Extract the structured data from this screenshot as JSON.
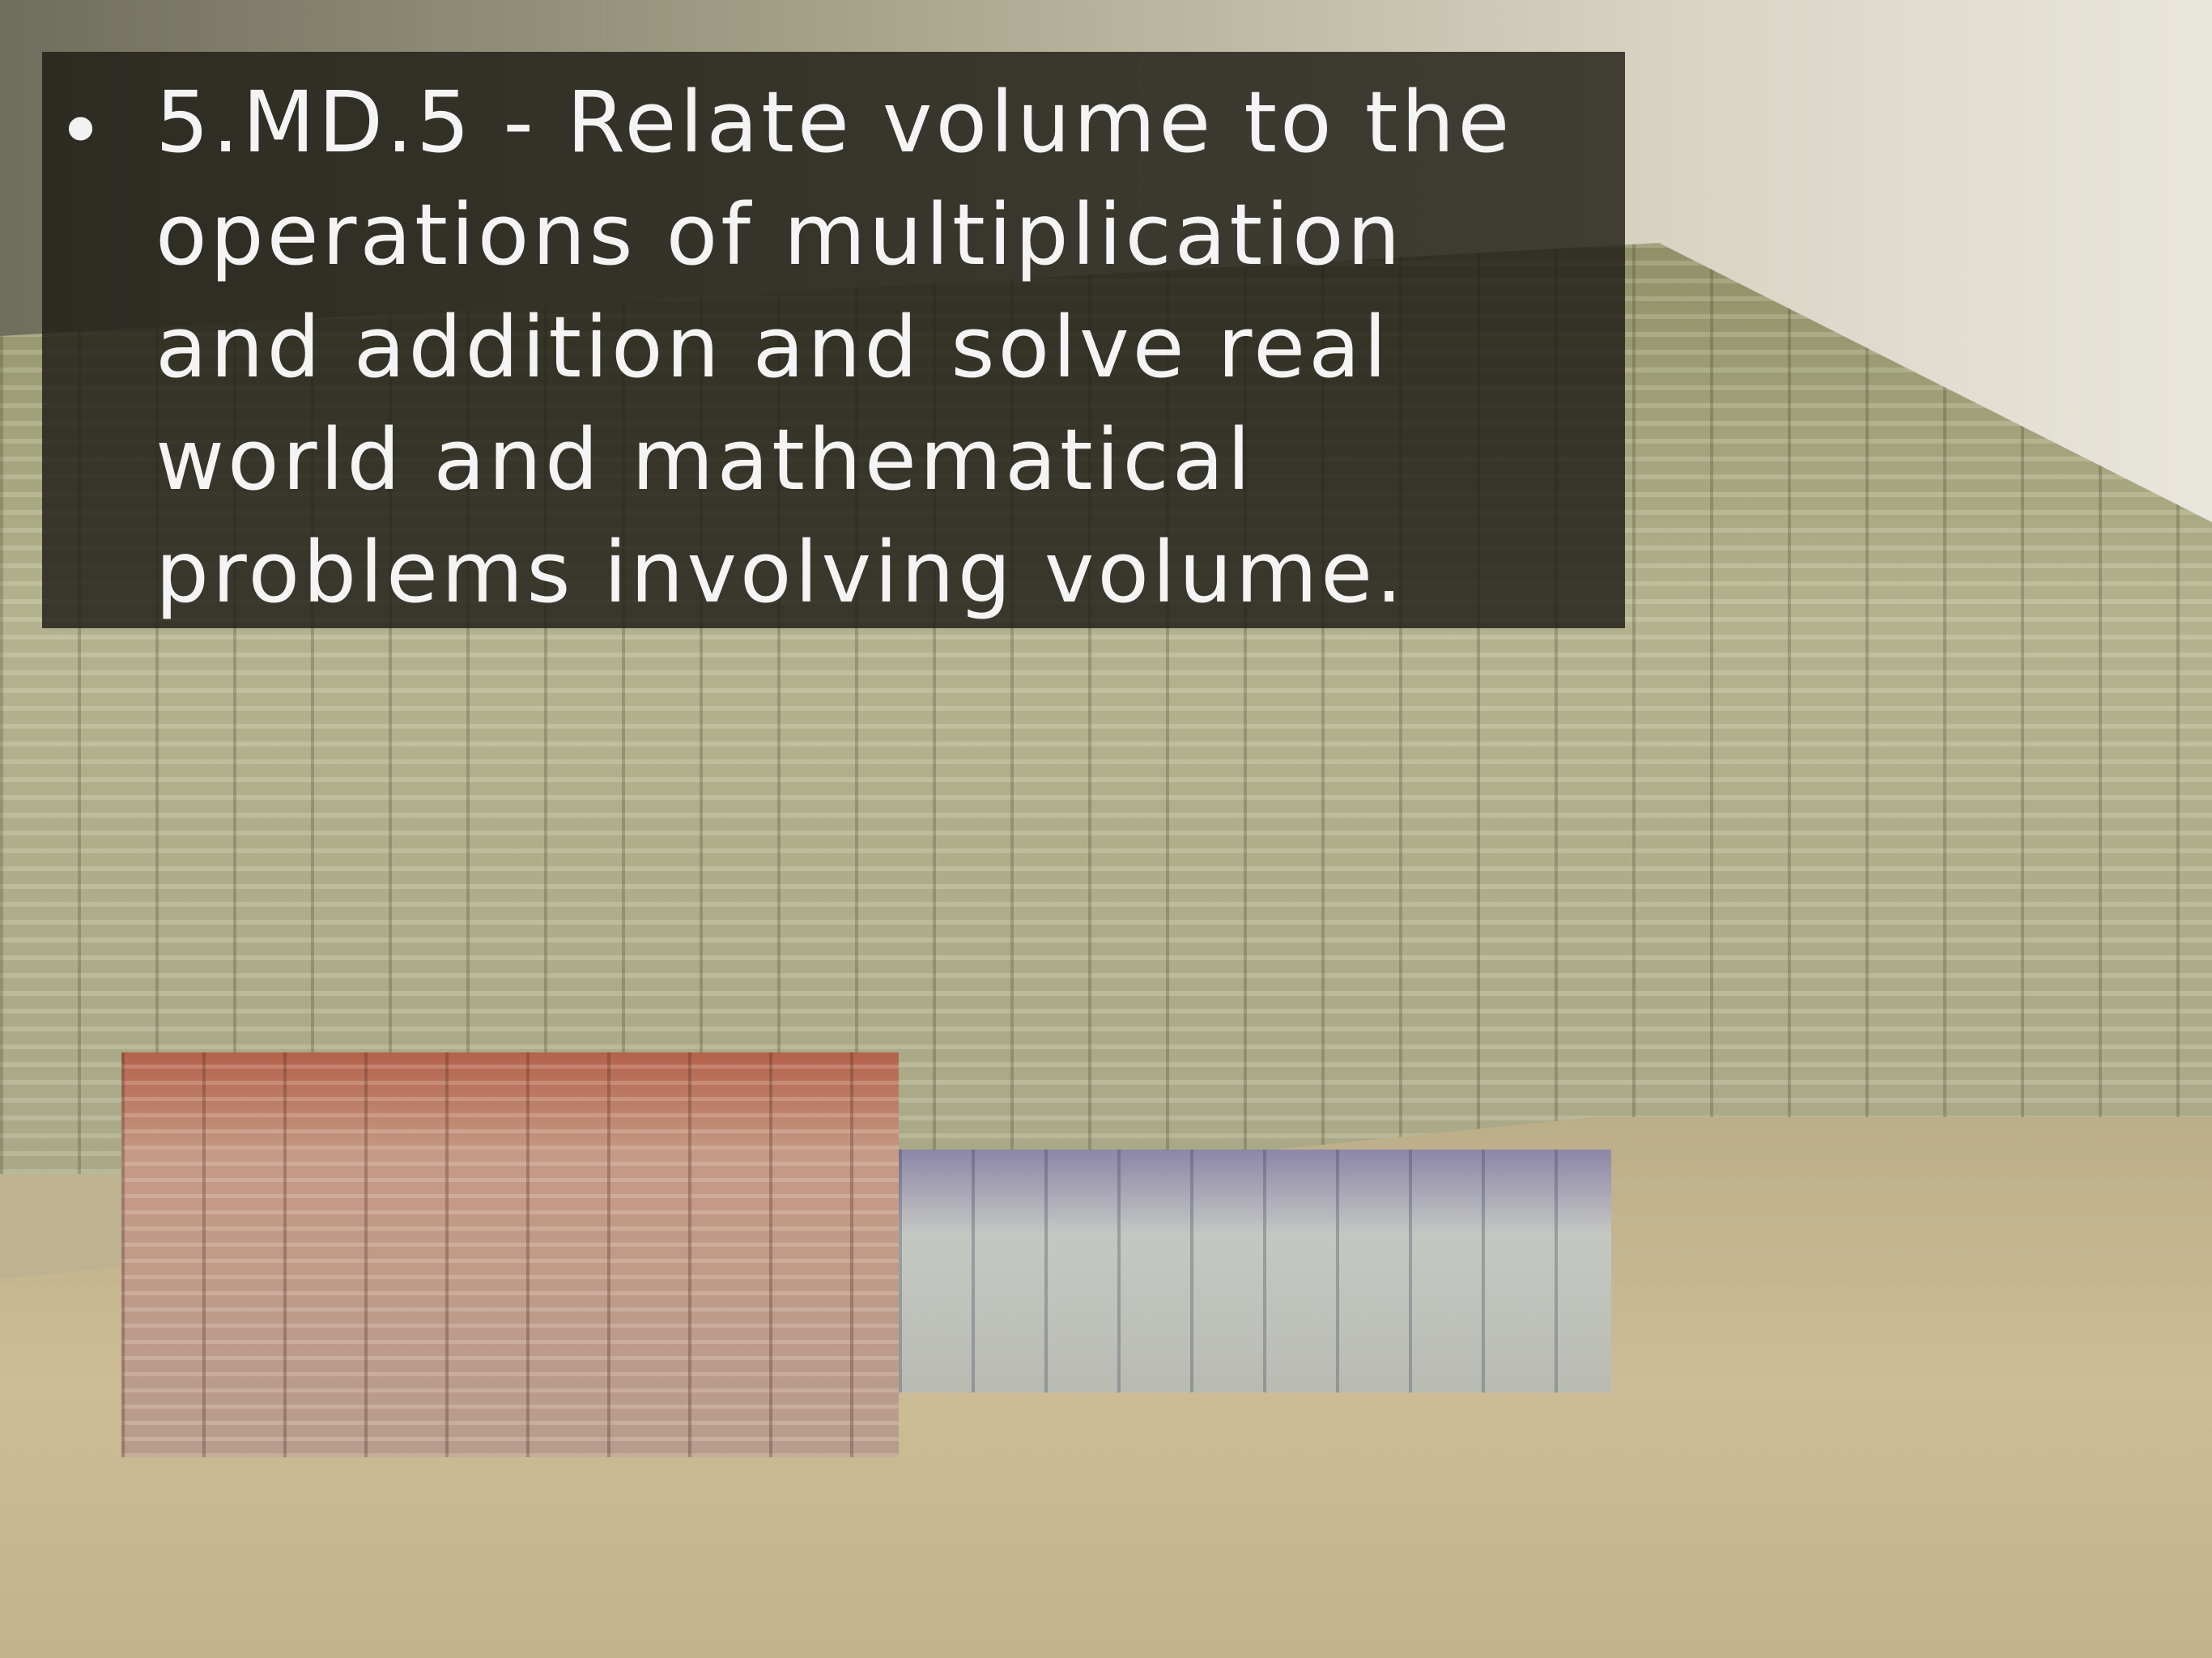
{
  "slide": {
    "bullet": "5.MD.5 - Relate volume to the operations of multiplication and addition and solve real world and mathematical problems involving volume."
  }
}
